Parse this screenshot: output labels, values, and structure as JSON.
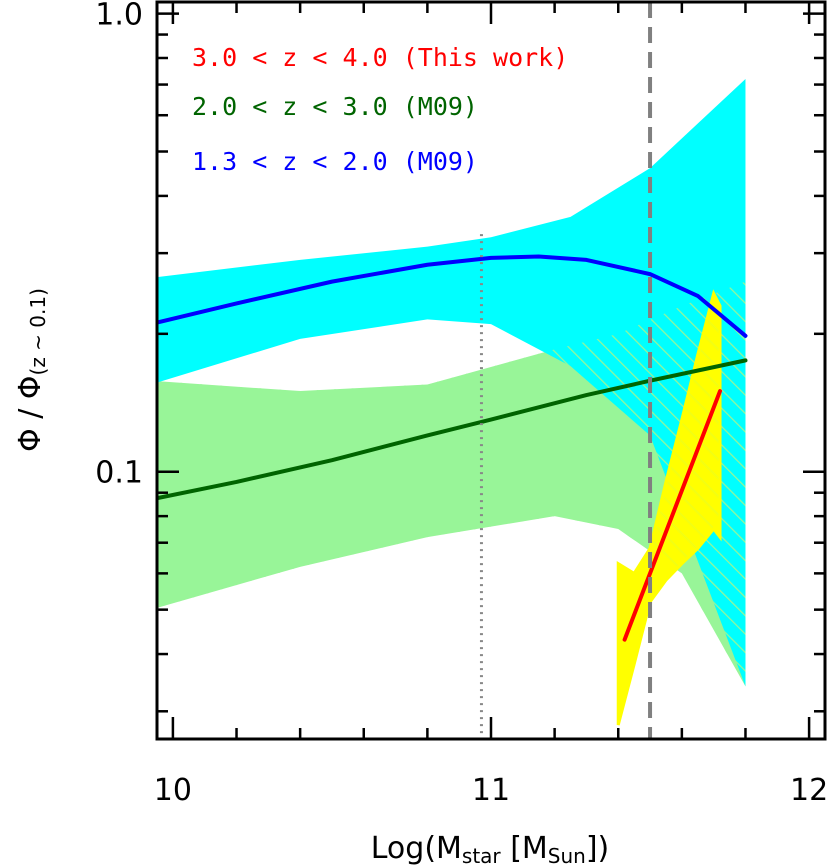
{
  "chart_data": {
    "type": "line",
    "title": "",
    "xlabel": {
      "main": "Log(M",
      "sub1": "star",
      "mid": " [M",
      "sub2": "Sun",
      "end": "])"
    },
    "ylabel": {
      "main": "Φ / Φ",
      "sub": "(z ~ 0.1)"
    },
    "xlim": [
      9.95,
      12.05
    ],
    "ylim": [
      0.0261,
      1.06
    ],
    "yscale": "log",
    "grid": false,
    "legend_position": "top-left",
    "x_ticks": [
      {
        "value": 10,
        "label": "10"
      },
      {
        "value": 11,
        "label": "11"
      },
      {
        "value": 12,
        "label": "12"
      }
    ],
    "y_ticks": [
      {
        "value": 0.1,
        "label": "0.1"
      },
      {
        "value": 1.0,
        "label": "1.0"
      }
    ],
    "reference_lines": [
      {
        "name": "dotted",
        "x": 10.97,
        "ymin": 0.0261,
        "ymax": 0.33,
        "color": "#888888",
        "style": "dotted"
      },
      {
        "name": "dashed",
        "x": 11.5,
        "ymin": 0.0261,
        "ymax": 1.06,
        "color": "#808080",
        "style": "dashed"
      }
    ],
    "bands": [
      {
        "series": "2.0 < z < 3.0 (M09)",
        "color": "#98f598",
        "fill": "solid",
        "x": [
          9.93,
          10.4,
          10.8,
          11.2,
          11.4,
          11.6,
          11.8
        ],
        "upper": [
          0.158,
          0.15,
          0.155,
          0.185,
          0.2,
          0.23,
          0.26
        ],
        "lower": [
          0.05,
          0.062,
          0.072,
          0.08,
          0.075,
          0.06,
          0.034
        ]
      },
      {
        "series": "1.3 < z < 2.0 (M09)",
        "color": "#00ffff",
        "fill": "solid",
        "x": [
          9.93,
          10.4,
          10.8,
          11.0,
          11.25,
          11.5,
          11.8
        ],
        "upper": [
          0.265,
          0.29,
          0.31,
          0.325,
          0.36,
          0.46,
          0.72
        ],
        "lower": [
          0.155,
          0.195,
          0.215,
          0.21,
          0.17,
          0.12,
          0.034
        ]
      },
      {
        "series": "3.0 < z < 4.0 (This work)",
        "color": "#ffff00",
        "fill": "solid",
        "x": [
          11.4,
          11.45,
          11.5,
          11.55,
          11.6,
          11.65,
          11.7,
          11.72
        ],
        "upper": [
          0.063,
          0.06,
          0.068,
          0.095,
          0.13,
          0.18,
          0.245,
          0.23
        ],
        "lower": [
          0.028,
          0.038,
          0.052,
          0.058,
          0.063,
          0.068,
          0.075,
          0.072
        ]
      }
    ],
    "series": [
      {
        "name": "3.0 < z < 4.0 (This work)",
        "color": "#ff0000",
        "x": [
          11.42,
          11.72
        ],
        "y": [
          0.043,
          0.15
        ]
      },
      {
        "name": "2.0 < z < 3.0 (M09)",
        "color": "#006400",
        "x": [
          9.93,
          10.2,
          10.5,
          10.8,
          11.0,
          11.3,
          11.5,
          11.8
        ],
        "y": [
          0.087,
          0.095,
          0.106,
          0.12,
          0.13,
          0.147,
          0.158,
          0.175
        ]
      },
      {
        "name": "1.3 < z < 2.0 (M09)",
        "color": "#0000ff",
        "x": [
          9.93,
          10.2,
          10.5,
          10.8,
          11.0,
          11.15,
          11.3,
          11.5,
          11.65,
          11.8
        ],
        "y": [
          0.21,
          0.233,
          0.26,
          0.283,
          0.293,
          0.295,
          0.29,
          0.27,
          0.242,
          0.198
        ]
      }
    ]
  }
}
